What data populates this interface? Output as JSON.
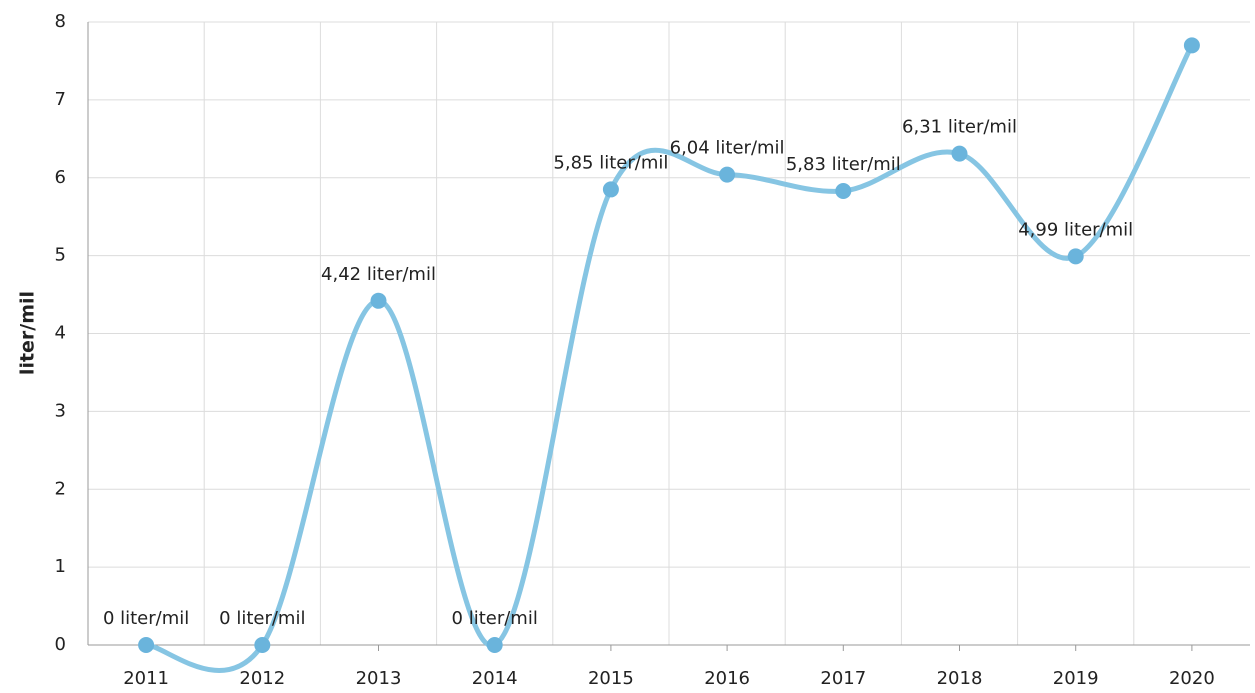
{
  "chart_data": {
    "type": "line",
    "y_label": "liter/mil",
    "categories": [
      "2011",
      "2012",
      "2013",
      "2014",
      "2015",
      "2016",
      "2017",
      "2018",
      "2019",
      "2020"
    ],
    "series": [
      {
        "name": "liter/mil",
        "color": "#86c5e3",
        "values": [
          0,
          0,
          4.42,
          0,
          5.85,
          6.04,
          5.83,
          6.31,
          4.99,
          7.7
        ],
        "value_labels": [
          "0 liter/mil",
          "0 liter/mil",
          "4,42 liter/mil",
          "0 liter/mil",
          "5,85 liter/mil",
          "6,04 liter/mil",
          "5,83 liter/mil",
          "6,31 liter/mil",
          "4,99 liter/mil",
          null
        ]
      }
    ],
    "ylim": [
      0,
      8
    ],
    "yticks": [
      0,
      1,
      2,
      3,
      4,
      5,
      6,
      7,
      8
    ],
    "grid": true,
    "smooth": true
  }
}
